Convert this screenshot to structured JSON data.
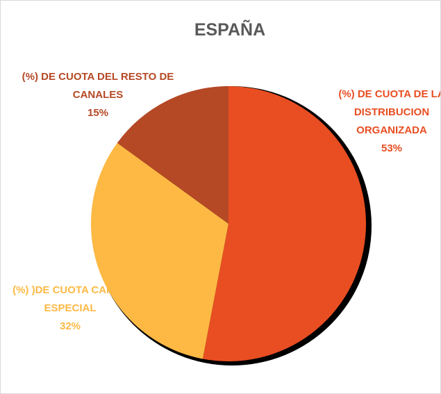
{
  "chart_data": {
    "type": "pie",
    "title": "ESPAÑA",
    "categories": [
      "(%) DE CUOTA DE LA DISTRIBUCION ORGANIZADA",
      "(%) )DE CUOTA CANAL ESPECIAL",
      "(%) DE CUOTA DEL RESTO DE CANALES"
    ],
    "values": [
      53,
      32,
      15
    ],
    "value_labels": [
      "53%",
      "32%",
      "15%"
    ],
    "colors": [
      "#e84e22",
      "#fdb944",
      "#b54825"
    ]
  }
}
